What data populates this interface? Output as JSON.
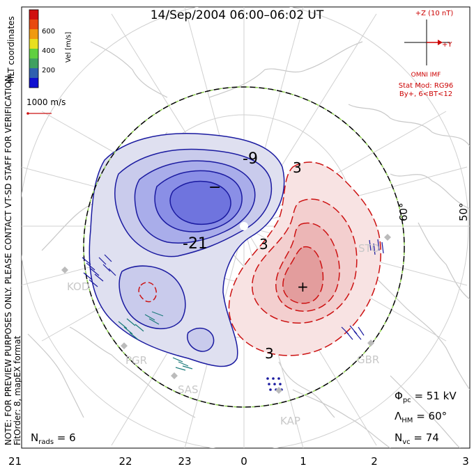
{
  "title": "14/Sep/2004 06:00–06:02 UT",
  "vel_scale": {
    "unit_label": "Vel [m/s]",
    "ticks": [
      "600",
      "400",
      "200"
    ],
    "colors": [
      "#d01010",
      "#e84a10",
      "#f09a10",
      "#e8e020",
      "#60d040",
      "#40a060",
      "#3060b0",
      "#1010d0"
    ]
  },
  "coordinates_label": "MLT coordinates",
  "reference_vector_label": "1000 m/s",
  "side_note": "NOTE: FOR PREVIEW PURPOSES ONLY. PLEASE CONTACT VT-SD STAFF FOR VERIFICATION.",
  "fit_order": "FitOrder: 8, mapEX format",
  "imf": {
    "z_label": "+Z (10 nT)",
    "y_label": "+Y",
    "source": "OMNI IMF",
    "stat_mod": "Stat Mod: RG96",
    "condition": "By+, 6<BT<12"
  },
  "contour_labels": [
    "-9",
    "-21",
    "3",
    "3",
    "3"
  ],
  "extrema_markers": [
    "−",
    "+"
  ],
  "latitude_labels": [
    "60°",
    "50°"
  ],
  "stations": [
    "KOD",
    "PGR",
    "SAS",
    "KAP",
    "GBR",
    "STO"
  ],
  "stats": {
    "phi_pc": "51 kV",
    "lambda_hm": "60°",
    "n_vc": "74",
    "n_rads": "6"
  },
  "mlt_axis": [
    "21",
    "22",
    "23",
    "0",
    "1",
    "2",
    "3"
  ],
  "colors": {
    "negative_cell": "#1a1aa0",
    "positive_cell": "#cc1111",
    "hm_boundary": "#000000",
    "hm_dash": "#8fd14f"
  }
}
